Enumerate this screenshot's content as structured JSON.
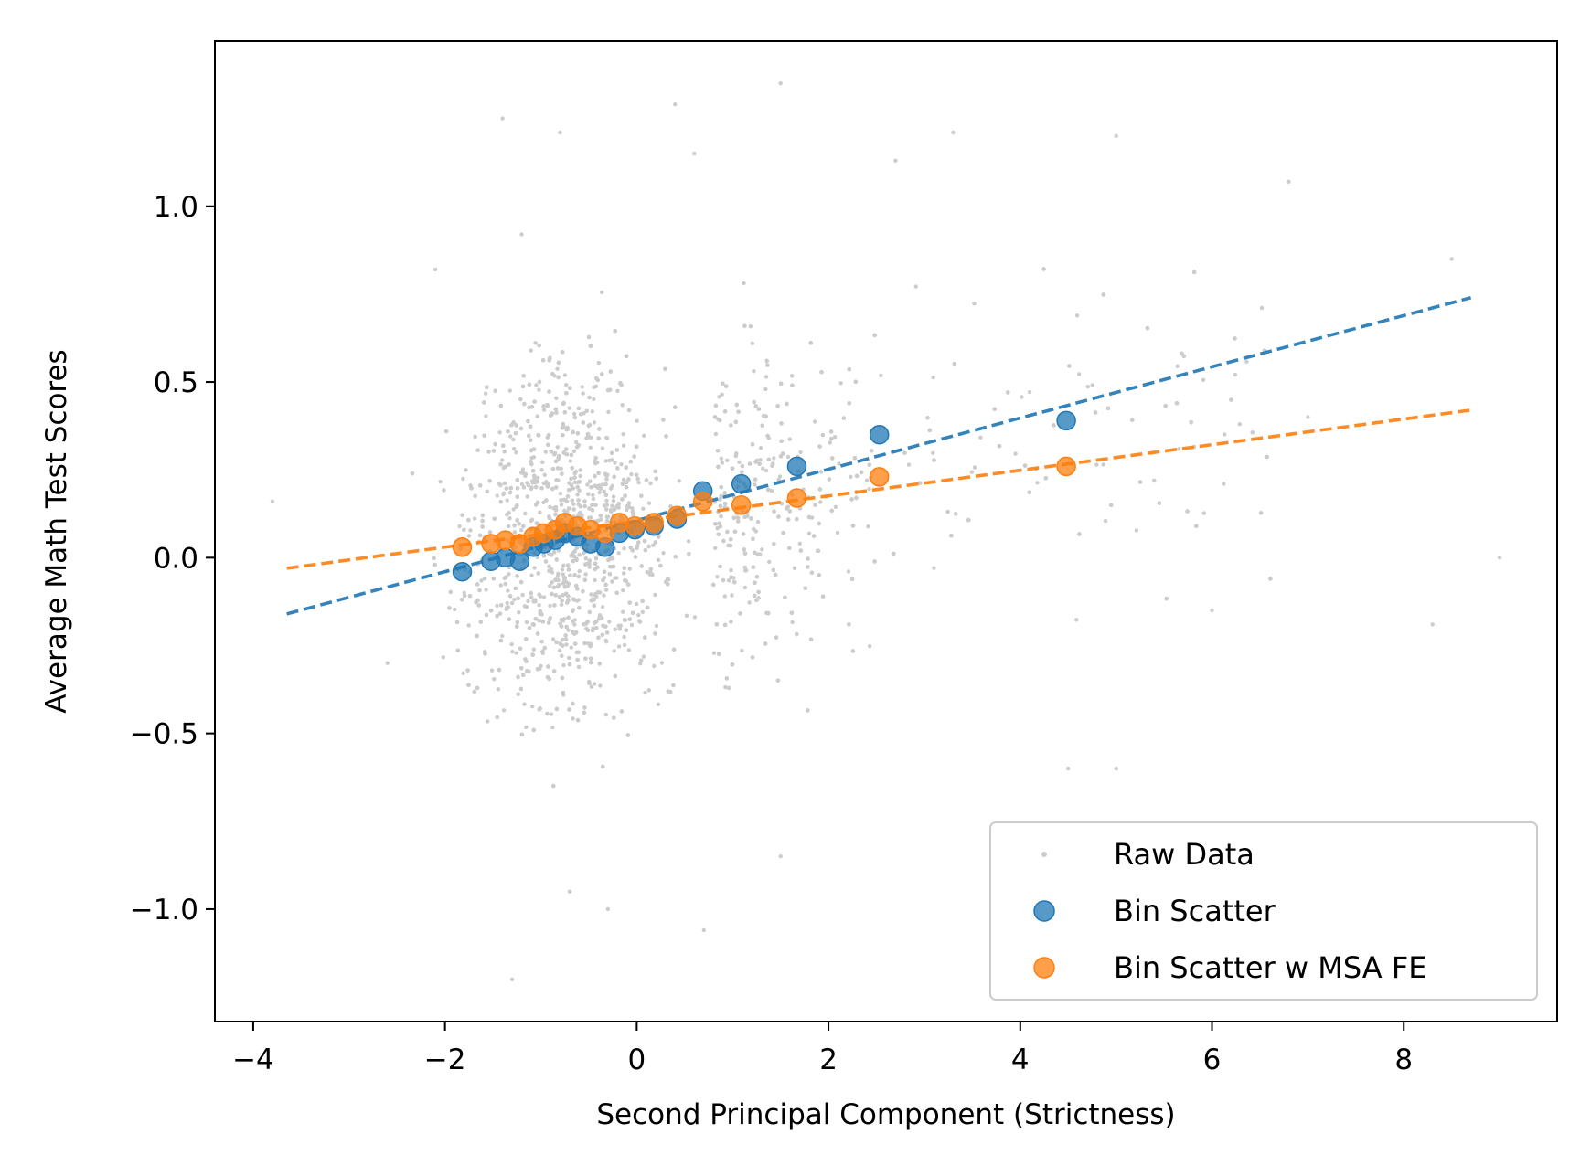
{
  "chart_data": {
    "type": "scatter",
    "title": "",
    "xlabel": "Second Principal Component (Strictness)",
    "ylabel": "Average Math Test Scores",
    "xlim": [
      -4.4,
      9.6
    ],
    "ylim": [
      -1.32,
      1.47
    ],
    "xticks": [
      -4,
      -2,
      0,
      2,
      4,
      6,
      8
    ],
    "xtick_labels": [
      "−4",
      "−2",
      "0",
      "2",
      "4",
      "6",
      "8"
    ],
    "yticks": [
      -1.0,
      -0.5,
      0.0,
      0.5,
      1.0
    ],
    "ytick_labels": [
      "−1.0",
      "−0.5",
      "0.0",
      "0.5",
      "1.0"
    ],
    "grid": false,
    "legend_position": "lower-right",
    "raw_data": {
      "name": "Raw Data",
      "color": "#cccccc",
      "note_points": [
        [
          -3.8,
          0.16
        ],
        [
          -2.6,
          -0.3
        ],
        [
          -2.1,
          0.82
        ],
        [
          -1.4,
          1.25
        ],
        [
          -1.3,
          -1.2
        ],
        [
          -1.2,
          0.92
        ],
        [
          -0.8,
          1.21
        ],
        [
          -0.7,
          -0.95
        ],
        [
          -0.3,
          -1.0
        ],
        [
          0.4,
          1.29
        ],
        [
          0.6,
          1.15
        ],
        [
          0.7,
          -1.06
        ],
        [
          1.5,
          1.35
        ],
        [
          2.7,
          1.13
        ],
        [
          3.3,
          1.21
        ],
        [
          5.0,
          1.2
        ],
        [
          6.8,
          1.07
        ],
        [
          8.5,
          0.85
        ],
        [
          9.0,
          0.0
        ],
        [
          8.3,
          -0.19
        ],
        [
          5.0,
          -0.6
        ],
        [
          6.0,
          -0.15
        ],
        [
          4.5,
          -0.6
        ],
        [
          7.0,
          0.4
        ],
        [
          1.5,
          -0.85
        ]
      ]
    },
    "series": [
      {
        "name": "Bin Scatter",
        "color": "#1f77b4",
        "x": [
          -1.82,
          -1.52,
          -1.37,
          -1.22,
          -1.08,
          -0.97,
          -0.85,
          -0.75,
          -0.62,
          -0.48,
          -0.33,
          -0.18,
          -0.02,
          0.18,
          0.42,
          0.69,
          1.09,
          1.67,
          2.53,
          4.48
        ],
        "y": [
          -0.04,
          -0.01,
          0.0,
          -0.01,
          0.03,
          0.04,
          0.05,
          0.07,
          0.06,
          0.04,
          0.03,
          0.07,
          0.08,
          0.09,
          0.11,
          0.19,
          0.21,
          0.26,
          0.35,
          0.39
        ],
        "fit_x": [
          -3.65,
          8.7
        ],
        "fit_y": [
          -0.16,
          0.74
        ]
      },
      {
        "name": "Bin Scatter w MSA FE",
        "color": "#ff7f0e",
        "x": [
          -1.82,
          -1.52,
          -1.37,
          -1.22,
          -1.08,
          -0.97,
          -0.85,
          -0.75,
          -0.62,
          -0.48,
          -0.33,
          -0.18,
          -0.02,
          0.18,
          0.42,
          0.69,
          1.09,
          1.67,
          2.53,
          4.48
        ],
        "y": [
          0.03,
          0.04,
          0.05,
          0.04,
          0.06,
          0.07,
          0.08,
          0.1,
          0.09,
          0.08,
          0.07,
          0.1,
          0.09,
          0.1,
          0.12,
          0.16,
          0.15,
          0.17,
          0.23,
          0.26
        ],
        "fit_x": [
          -3.65,
          8.7
        ],
        "fit_y": [
          -0.03,
          0.42
        ]
      }
    ]
  }
}
